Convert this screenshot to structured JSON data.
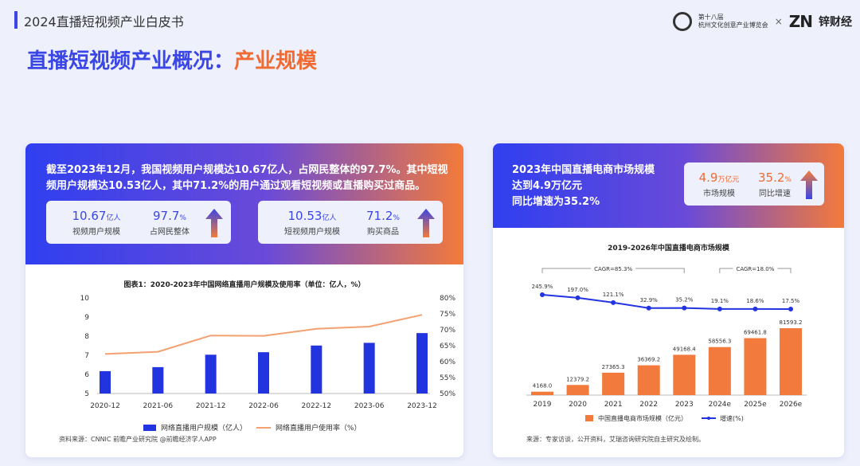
{
  "header": {
    "doc_title": "2024直播短视频产业白皮书",
    "logo1_text_line1": "第十八届",
    "logo1_text_line2": "杭州文化创意产业博览会",
    "logo_separator": "×",
    "logo2_mark": "ZN",
    "logo2_text": "锌财经"
  },
  "page_title": {
    "main": "直播短视频产业概况：",
    "accent": "产业规模"
  },
  "left_card": {
    "headline": "截至2023年12月，我国视频用户规模达10.67亿人，占网民整体的97.7%。其中短视频用户规模达10.53亿人，其中71.2%的用户通过观看短视频或直播购买过商品。",
    "stats": [
      {
        "value": "10.67",
        "unit": "亿人",
        "label": "视频用户规模"
      },
      {
        "value": "97.7",
        "unit": "%",
        "label": "占网民整体"
      },
      {
        "value": "10.53",
        "unit": "亿人",
        "label": "短视频用户规模"
      },
      {
        "value": "71.2",
        "unit": "%",
        "label": "购买商品"
      }
    ],
    "source": "资料来源：CNNIC 前瞻产业研究院    @前瞻经济学人APP"
  },
  "right_card": {
    "headline_l1": "2023年中国直播电商市场规模",
    "headline_l2": "达到4.9万亿元",
    "headline_l3": "同比增速为35.2%",
    "stats": [
      {
        "value": "4.9",
        "unit": "万亿元",
        "label": "市场规模"
      },
      {
        "value": "35.2",
        "unit": "%",
        "label": "同比增速"
      }
    ],
    "source": "来源：专家访谈，公开资料，艾瑞咨询研究院自主研究及绘制。"
  },
  "chart_data": [
    {
      "type": "bar",
      "title": "图表1：2020-2023年中国网络直播用户规模及使用率（单位：亿人，%）",
      "categories": [
        "2020-12",
        "2021-06",
        "2021-12",
        "2022-06",
        "2022-12",
        "2023-06",
        "2023-12"
      ],
      "series": [
        {
          "name": "网络直播用户规模（亿人）",
          "type": "bar",
          "axis": "left",
          "values": [
            6.17,
            6.38,
            7.03,
            7.16,
            7.51,
            7.65,
            8.16
          ],
          "color": "#2233e0"
        },
        {
          "name": "网络直播用户使用率（%）",
          "type": "line",
          "axis": "right",
          "values": [
            62.4,
            63.1,
            68.2,
            68.1,
            70.3,
            71.0,
            74.7
          ],
          "color": "#f4a070"
        }
      ],
      "y_left": {
        "range": [
          5,
          10
        ],
        "ticks": [
          "5",
          "6",
          "7",
          "8",
          "9",
          "10"
        ]
      },
      "y_right": {
        "range": [
          50,
          80
        ],
        "ticks": [
          "50%",
          "55%",
          "60%",
          "65%",
          "70%",
          "75%",
          "80%"
        ]
      },
      "grid": false,
      "legend": "bottom"
    },
    {
      "type": "bar",
      "title": "2019-2026年中国直播电商市场规模",
      "categories": [
        "2019",
        "2020",
        "2021",
        "2022",
        "2023",
        "2024e",
        "2025e",
        "2026e"
      ],
      "series": [
        {
          "name": "中国直播电商市场规模（亿元）",
          "type": "bar",
          "values": [
            4168.0,
            12379.2,
            27365.3,
            36369.2,
            49168.4,
            58556.3,
            69461.8,
            81593.2
          ],
          "labels": [
            "4168.0",
            "12379.2",
            "27365.3",
            "36369.2",
            "49168.4",
            "58556.3",
            "69461.8",
            "81593.2"
          ],
          "color": "#f27a3c"
        },
        {
          "name": "增速(%)",
          "type": "line",
          "values": [
            245.9,
            197.0,
            121.1,
            32.9,
            35.2,
            19.1,
            18.6,
            17.5
          ],
          "labels": [
            "245.9%",
            "197.0%",
            "121.1%",
            "32.9%",
            "35.2%",
            "19.1%",
            "18.6%",
            "17.5%"
          ],
          "color": "#2233e0"
        }
      ],
      "annotations": [
        {
          "text": "CAGR=85.3%",
          "from": "2019",
          "to": "2023"
        },
        {
          "text": "CAGR=18.0%",
          "from": "2024e",
          "to": "2026e"
        }
      ],
      "legend": "bottom"
    }
  ]
}
